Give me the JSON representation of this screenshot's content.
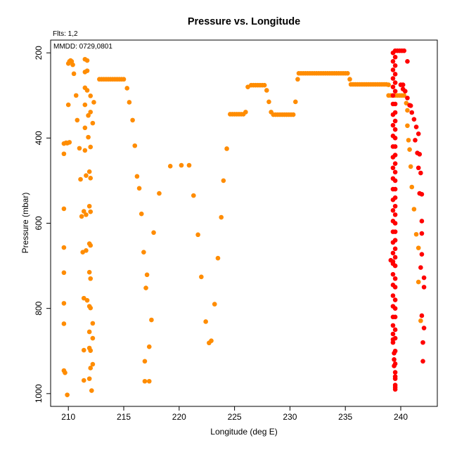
{
  "chart_data": {
    "type": "scatter",
    "title": "Pressure vs. Longitude",
    "xlabel": "Longitude (deg E)",
    "ylabel": "Pressure (mbar)",
    "xlim": [
      208.4,
      243.3
    ],
    "ylim": [
      1030,
      170
    ],
    "y_inverted": true,
    "grid": false,
    "legend": "none",
    "annotations": {
      "flts": "Flts: 1,2",
      "mmdd": "MMDD: 0729,0801"
    },
    "x_ticks": [
      210,
      215,
      220,
      225,
      230,
      235,
      240
    ],
    "y_ticks": [
      200,
      400,
      600,
      800,
      1000
    ],
    "series": [
      {
        "color": "#ff8c00",
        "points": [
          [
            209.6,
            413
          ],
          [
            209.8,
            411
          ],
          [
            209.9,
            412
          ],
          [
            210.1,
            410
          ],
          [
            210.0,
            225
          ],
          [
            210.1,
            220
          ],
          [
            210.2,
            218
          ],
          [
            210.3,
            220
          ],
          [
            210.4,
            228
          ],
          [
            210.5,
            249
          ],
          [
            209.6,
            437
          ],
          [
            209.6,
            566
          ],
          [
            209.6,
            657
          ],
          [
            209.6,
            716
          ],
          [
            209.6,
            788
          ],
          [
            209.6,
            836
          ],
          [
            209.6,
            946
          ],
          [
            209.7,
            951
          ],
          [
            209.9,
            1003
          ],
          [
            210.0,
            322
          ],
          [
            210.7,
            300
          ],
          [
            210.8,
            358
          ],
          [
            211.0,
            424
          ],
          [
            211.1,
            497
          ],
          [
            211.2,
            584
          ],
          [
            211.4,
            572
          ],
          [
            211.3,
            668
          ],
          [
            211.4,
            776
          ],
          [
            211.4,
            898
          ],
          [
            211.4,
            969
          ],
          [
            211.5,
            215
          ],
          [
            211.5,
            245
          ],
          [
            211.5,
            282
          ],
          [
            211.5,
            322
          ],
          [
            211.5,
            376
          ],
          [
            211.5,
            429
          ],
          [
            211.6,
            488
          ],
          [
            211.6,
            580
          ],
          [
            211.6,
            664
          ],
          [
            211.7,
            781
          ],
          [
            211.7,
            218
          ],
          [
            211.7,
            242
          ],
          [
            211.7,
            288
          ],
          [
            211.8,
            347
          ],
          [
            211.8,
            398
          ],
          [
            211.9,
            479
          ],
          [
            211.9,
            560
          ],
          [
            211.9,
            648
          ],
          [
            211.9,
            715
          ],
          [
            211.9,
            795
          ],
          [
            211.9,
            855
          ],
          [
            211.9,
            893
          ],
          [
            211.9,
            965
          ],
          [
            212.0,
            940
          ],
          [
            212.0,
            899
          ],
          [
            212.0,
            799
          ],
          [
            212.0,
            730
          ],
          [
            212.0,
            652
          ],
          [
            212.0,
            573
          ],
          [
            212.0,
            494
          ],
          [
            212.0,
            421
          ],
          [
            212.0,
            339
          ],
          [
            212.0,
            301
          ],
          [
            212.1,
            993
          ],
          [
            212.2,
            931
          ],
          [
            212.2,
            870
          ],
          [
            212.2,
            835
          ],
          [
            212.2,
            365
          ],
          [
            212.3,
            316
          ],
          [
            212.8,
            262
          ],
          [
            213.0,
            262
          ],
          [
            213.2,
            262
          ],
          [
            213.4,
            262
          ],
          [
            213.6,
            262
          ],
          [
            213.8,
            262
          ],
          [
            214.0,
            262
          ],
          [
            214.2,
            262
          ],
          [
            214.4,
            262
          ],
          [
            214.6,
            262
          ],
          [
            214.8,
            262
          ],
          [
            215.0,
            262
          ],
          [
            215.3,
            283
          ],
          [
            215.5,
            316
          ],
          [
            215.8,
            358
          ],
          [
            216.0,
            418
          ],
          [
            216.2,
            490
          ],
          [
            216.4,
            518
          ],
          [
            216.6,
            578
          ],
          [
            216.8,
            668
          ],
          [
            217.0,
            752
          ],
          [
            217.1,
            721
          ],
          [
            216.9,
            924
          ],
          [
            216.9,
            971
          ],
          [
            217.3,
            971
          ],
          [
            217.3,
            890
          ],
          [
            217.5,
            827
          ],
          [
            217.7,
            622
          ],
          [
            218.2,
            530
          ],
          [
            219.2,
            466
          ],
          [
            220.2,
            464
          ],
          [
            220.9,
            464
          ],
          [
            221.3,
            535
          ],
          [
            221.7,
            627
          ],
          [
            222.0,
            726
          ],
          [
            222.4,
            831
          ],
          [
            222.7,
            881
          ],
          [
            222.9,
            876
          ],
          [
            223.2,
            790
          ],
          [
            223.5,
            682
          ],
          [
            223.8,
            586
          ],
          [
            224.0,
            500
          ],
          [
            224.3,
            425
          ],
          [
            224.6,
            344
          ],
          [
            224.8,
            344
          ],
          [
            225.0,
            344
          ],
          [
            225.2,
            344
          ],
          [
            225.4,
            344
          ],
          [
            225.6,
            344
          ],
          [
            225.8,
            344
          ],
          [
            226.0,
            339
          ],
          [
            226.2,
            280
          ],
          [
            226.5,
            276
          ],
          [
            226.7,
            276
          ],
          [
            226.9,
            276
          ],
          [
            227.1,
            276
          ],
          [
            227.3,
            276
          ],
          [
            227.5,
            276
          ],
          [
            227.7,
            276
          ],
          [
            227.9,
            288
          ],
          [
            228.1,
            315
          ],
          [
            228.3,
            339
          ],
          [
            228.5,
            345
          ],
          [
            228.7,
            345
          ],
          [
            228.9,
            345
          ],
          [
            229.1,
            345
          ],
          [
            229.3,
            345
          ],
          [
            229.5,
            345
          ],
          [
            229.7,
            345
          ],
          [
            229.9,
            345
          ],
          [
            230.1,
            345
          ],
          [
            230.3,
            345
          ],
          [
            230.5,
            315
          ],
          [
            230.7,
            262
          ],
          [
            230.8,
            248
          ],
          [
            231.0,
            248
          ],
          [
            231.2,
            248
          ],
          [
            231.4,
            248
          ],
          [
            231.6,
            248
          ],
          [
            231.8,
            248
          ],
          [
            232.0,
            248
          ],
          [
            232.2,
            248
          ],
          [
            232.4,
            248
          ],
          [
            232.6,
            248
          ],
          [
            232.8,
            248
          ],
          [
            233.0,
            248
          ],
          [
            233.2,
            248
          ],
          [
            233.4,
            248
          ],
          [
            233.6,
            248
          ],
          [
            233.8,
            248
          ],
          [
            234.0,
            248
          ],
          [
            234.2,
            248
          ],
          [
            234.4,
            248
          ],
          [
            234.6,
            248
          ],
          [
            234.8,
            248
          ],
          [
            235.0,
            248
          ],
          [
            235.2,
            248
          ],
          [
            235.4,
            262
          ],
          [
            235.5,
            274
          ],
          [
            235.7,
            274
          ],
          [
            235.9,
            274
          ],
          [
            236.1,
            274
          ],
          [
            236.3,
            274
          ],
          [
            236.5,
            274
          ],
          [
            236.7,
            274
          ],
          [
            236.9,
            274
          ],
          [
            237.1,
            274
          ],
          [
            237.3,
            274
          ],
          [
            237.5,
            274
          ],
          [
            237.7,
            274
          ],
          [
            237.9,
            274
          ],
          [
            238.1,
            274
          ],
          [
            238.3,
            274
          ],
          [
            238.5,
            274
          ],
          [
            238.7,
            274
          ],
          [
            238.9,
            275
          ],
          [
            238.9,
            300
          ],
          [
            239.1,
            300
          ],
          [
            239.3,
            300
          ],
          [
            239.5,
            300
          ],
          [
            239.7,
            300
          ],
          [
            239.9,
            300
          ],
          [
            240.1,
            300
          ],
          [
            240.3,
            300
          ],
          [
            240.5,
            318
          ],
          [
            240.6,
            335
          ],
          [
            240.6,
            371
          ],
          [
            240.7,
            405
          ],
          [
            240.8,
            427
          ],
          [
            240.9,
            467
          ],
          [
            241.0,
            515
          ],
          [
            241.2,
            567
          ],
          [
            241.4,
            626
          ],
          [
            241.6,
            658
          ],
          [
            241.6,
            738
          ],
          [
            241.8,
            829
          ]
        ]
      },
      {
        "color": "#ff0000",
        "points": [
          [
            239.5,
            990
          ],
          [
            239.5,
            980
          ],
          [
            239.5,
            965
          ],
          [
            239.5,
            950
          ],
          [
            239.4,
            935
          ],
          [
            239.4,
            920
          ],
          [
            239.4,
            905
          ],
          [
            239.3,
            880
          ],
          [
            239.3,
            860
          ],
          [
            239.3,
            840
          ],
          [
            239.3,
            820
          ],
          [
            239.3,
            795
          ],
          [
            239.3,
            770
          ],
          [
            239.3,
            745
          ],
          [
            239.3,
            720
          ],
          [
            239.3,
            695
          ],
          [
            239.3,
            670
          ],
          [
            239.3,
            645
          ],
          [
            239.3,
            620
          ],
          [
            239.3,
            595
          ],
          [
            239.3,
            570
          ],
          [
            239.3,
            545
          ],
          [
            239.3,
            520
          ],
          [
            239.3,
            495
          ],
          [
            239.3,
            470
          ],
          [
            239.3,
            445
          ],
          [
            239.3,
            420
          ],
          [
            239.3,
            395
          ],
          [
            239.3,
            370
          ],
          [
            239.3,
            345
          ],
          [
            239.3,
            320
          ],
          [
            239.3,
            300
          ],
          [
            239.3,
            280
          ],
          [
            239.3,
            260
          ],
          [
            239.3,
            240
          ],
          [
            239.3,
            220
          ],
          [
            239.3,
            200
          ],
          [
            239.5,
            985
          ],
          [
            239.5,
            960
          ],
          [
            239.5,
            930
          ],
          [
            239.5,
            900
          ],
          [
            239.5,
            870
          ],
          [
            239.5,
            850
          ],
          [
            239.5,
            820
          ],
          [
            239.5,
            800
          ],
          [
            239.5,
            780
          ],
          [
            239.5,
            750
          ],
          [
            239.5,
            730
          ],
          [
            239.5,
            700
          ],
          [
            239.5,
            680
          ],
          [
            239.5,
            660
          ],
          [
            239.5,
            640
          ],
          [
            239.5,
            620
          ],
          [
            239.5,
            600
          ],
          [
            239.5,
            580
          ],
          [
            239.5,
            560
          ],
          [
            239.5,
            540
          ],
          [
            239.5,
            520
          ],
          [
            239.5,
            500
          ],
          [
            239.5,
            480
          ],
          [
            239.5,
            460
          ],
          [
            239.5,
            440
          ],
          [
            239.5,
            420
          ],
          [
            239.5,
            400
          ],
          [
            239.5,
            380
          ],
          [
            239.5,
            360
          ],
          [
            239.5,
            340
          ],
          [
            239.5,
            320
          ],
          [
            239.5,
            290
          ],
          [
            239.5,
            270
          ],
          [
            239.5,
            250
          ],
          [
            239.5,
            230
          ],
          [
            239.5,
            210
          ],
          [
            239.5,
            195
          ],
          [
            239.1,
            687
          ],
          [
            239.3,
            690
          ],
          [
            239.3,
            873
          ],
          [
            239.7,
            195
          ],
          [
            239.9,
            195
          ],
          [
            240.1,
            195
          ],
          [
            240.3,
            195
          ],
          [
            240.0,
            275
          ],
          [
            240.2,
            275
          ],
          [
            240.6,
            220
          ],
          [
            240.2,
            285
          ],
          [
            240.4,
            290
          ],
          [
            240.6,
            306
          ],
          [
            240.8,
            323
          ],
          [
            240.9,
            324
          ],
          [
            241.0,
            340
          ],
          [
            241.2,
            356
          ],
          [
            241.4,
            374
          ],
          [
            241.6,
            390
          ],
          [
            241.3,
            405
          ],
          [
            241.5,
            435
          ],
          [
            241.7,
            438
          ],
          [
            241.6,
            470
          ],
          [
            241.8,
            482
          ],
          [
            241.7,
            530
          ],
          [
            241.9,
            532
          ],
          [
            241.9,
            595
          ],
          [
            241.9,
            624
          ],
          [
            241.9,
            673
          ],
          [
            241.8,
            704
          ],
          [
            242.1,
            728
          ],
          [
            242.1,
            750
          ],
          [
            241.9,
            817
          ],
          [
            242.1,
            846
          ],
          [
            242.0,
            880
          ],
          [
            242.0,
            924
          ]
        ]
      }
    ]
  }
}
